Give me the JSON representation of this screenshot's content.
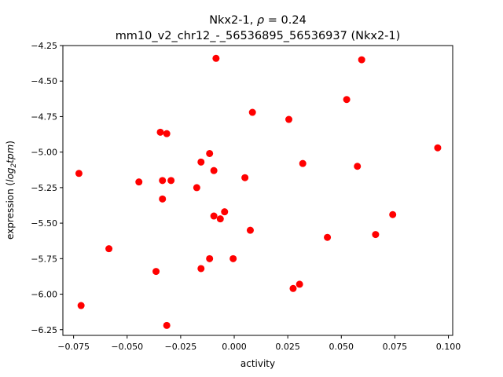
{
  "chart_data": {
    "type": "scatter",
    "title_line1_prefix": "Nkx2-1, ",
    "title_line1_rho": "ρ",
    "title_line1_suffix": " = 0.24",
    "title_line2": "mm10_v2_chr12_-_56536895_56536937 (Nkx2-1)",
    "xlabel": "activity",
    "ylabel_prefix": "expression (",
    "ylabel_math": "log",
    "ylabel_sub": "2",
    "ylabel_math2": "tpm",
    "ylabel_suffix": ")",
    "xlim": [
      -0.08,
      0.102
    ],
    "ylim": [
      -6.29,
      -4.25
    ],
    "xticks": [
      -0.075,
      -0.05,
      -0.025,
      0.0,
      0.025,
      0.05,
      0.075,
      0.1
    ],
    "xtick_labels": [
      "−0.075",
      "−0.050",
      "−0.025",
      "0.000",
      "0.025",
      "0.050",
      "0.075",
      "0.100"
    ],
    "yticks": [
      -4.25,
      -4.5,
      -4.75,
      -5.0,
      -5.25,
      -5.5,
      -5.75,
      -6.0,
      -6.25
    ],
    "ytick_labels": [
      "−4.25",
      "−4.50",
      "−4.75",
      "−5.00",
      "−5.25",
      "−5.50",
      "−5.75",
      "−6.00",
      "−6.25"
    ],
    "grid": false,
    "marker_color": "#ff0000",
    "points": [
      {
        "x": -0.0085,
        "y": -4.34
      },
      {
        "x": 0.0595,
        "y": -4.35
      },
      {
        "x": 0.0525,
        "y": -4.63
      },
      {
        "x": 0.0085,
        "y": -4.72
      },
      {
        "x": 0.0255,
        "y": -4.77
      },
      {
        "x": -0.0345,
        "y": -4.86
      },
      {
        "x": -0.0315,
        "y": -4.87
      },
      {
        "x": 0.095,
        "y": -4.97
      },
      {
        "x": -0.0115,
        "y": -5.01
      },
      {
        "x": -0.0155,
        "y": -5.07
      },
      {
        "x": 0.032,
        "y": -5.08
      },
      {
        "x": 0.0575,
        "y": -5.1
      },
      {
        "x": -0.0095,
        "y": -5.13
      },
      {
        "x": -0.0725,
        "y": -5.15
      },
      {
        "x": 0.005,
        "y": -5.18
      },
      {
        "x": -0.0335,
        "y": -5.2
      },
      {
        "x": -0.0295,
        "y": -5.2
      },
      {
        "x": -0.0445,
        "y": -5.21
      },
      {
        "x": -0.0175,
        "y": -5.25
      },
      {
        "x": -0.0335,
        "y": -5.33
      },
      {
        "x": -0.0045,
        "y": -5.42
      },
      {
        "x": -0.0095,
        "y": -5.45
      },
      {
        "x": -0.0065,
        "y": -5.47
      },
      {
        "x": 0.074,
        "y": -5.44
      },
      {
        "x": 0.0075,
        "y": -5.55
      },
      {
        "x": 0.066,
        "y": -5.58
      },
      {
        "x": 0.0435,
        "y": -5.6
      },
      {
        "x": -0.0585,
        "y": -5.68
      },
      {
        "x": -0.0115,
        "y": -5.75
      },
      {
        "x": -0.0005,
        "y": -5.75
      },
      {
        "x": -0.0155,
        "y": -5.82
      },
      {
        "x": -0.0365,
        "y": -5.84
      },
      {
        "x": 0.0305,
        "y": -5.93
      },
      {
        "x": 0.0275,
        "y": -5.96
      },
      {
        "x": -0.0715,
        "y": -6.08
      },
      {
        "x": -0.0315,
        "y": -6.22
      }
    ]
  }
}
